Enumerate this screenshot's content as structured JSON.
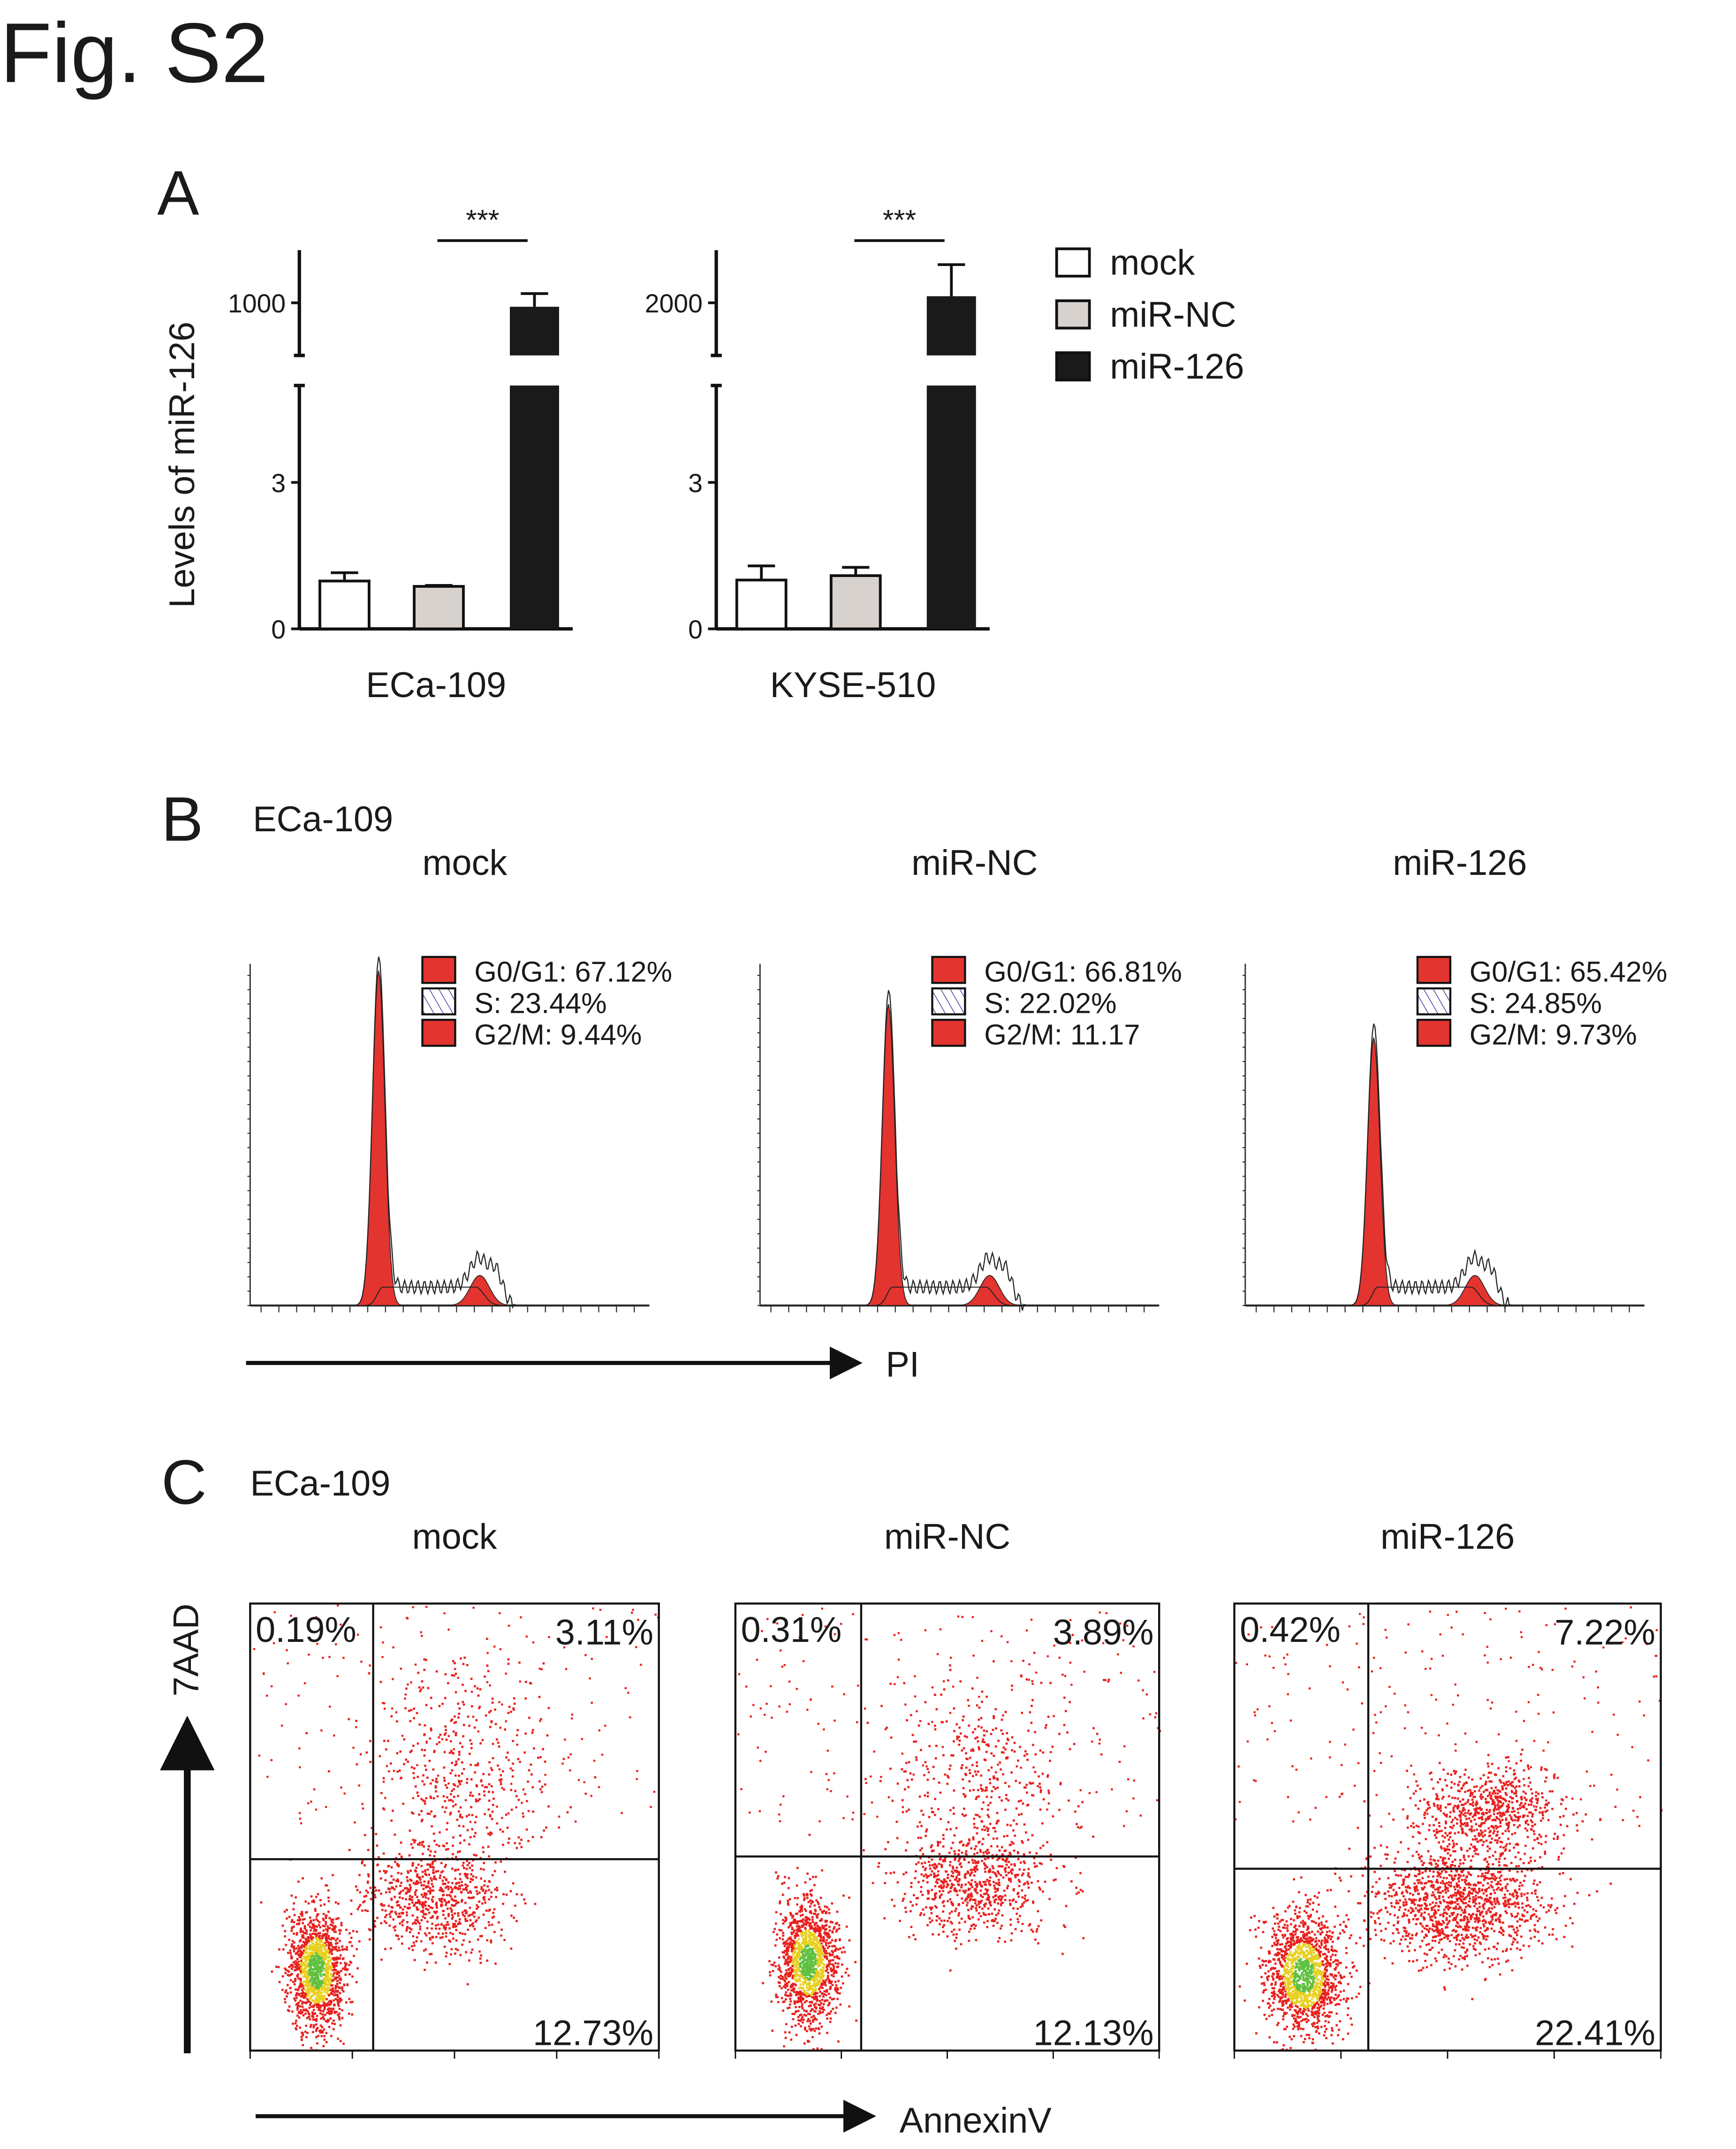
{
  "figure_title": "Fig. S2",
  "panels": {
    "A": "A",
    "B": "B",
    "C": "C"
  },
  "chart_data": [
    {
      "type": "bar",
      "panel": "A",
      "ylabel": "Levels of miR-126",
      "legend": {
        "placement": "right",
        "entries": [
          {
            "name": "mock",
            "color": "#ffffff"
          },
          {
            "name": "miR-NC",
            "color": "#d8d2cf"
          },
          {
            "name": "miR-126",
            "color": "#1a1a1a"
          }
        ]
      },
      "groups": [
        {
          "label": "ECa-109",
          "significance": "***",
          "axis_break": true,
          "lower_ticks": [
            "0",
            "3"
          ],
          "upper_ticks": [
            "1000"
          ],
          "lower_ylim": [
            0,
            5
          ],
          "upper_ylim": [
            800,
            1200
          ],
          "values": [
            0.98,
            0.87,
            985
          ],
          "errors": [
            0.17,
            0.02,
            50
          ]
        },
        {
          "label": "KYSE-510",
          "significance": "***",
          "axis_break": true,
          "lower_ticks": [
            "0",
            "3"
          ],
          "upper_ticks": [
            "2000"
          ],
          "lower_ylim": [
            0,
            5
          ],
          "upper_ylim": [
            1600,
            2400
          ],
          "values": [
            1.0,
            1.09,
            2050
          ],
          "errors": [
            0.29,
            0.17,
            240
          ]
        }
      ]
    },
    {
      "type": "histogram",
      "panel": "B",
      "cell_line": "ECa-109",
      "xlabel": "PI",
      "plots": [
        {
          "title": "mock",
          "legend": [
            "G0/G1: 67.12%",
            "S: 23.44%",
            "G2/M: 9.44%"
          ]
        },
        {
          "title": "miR-NC",
          "legend": [
            "G0/G1: 66.81%",
            "S: 22.02%",
            "G2/M: 11.17"
          ]
        },
        {
          "title": "miR-126",
          "legend": [
            "G0/G1: 65.42%",
            "S: 24.85%",
            "G2/M: 9.73%"
          ]
        }
      ],
      "colors": {
        "g1": "#e3342f",
        "s_hatch": "#3a3aa0",
        "g2m": "#e3342f"
      }
    },
    {
      "type": "scatter",
      "panel": "C",
      "cell_line": "ECa-109",
      "xlabel": "AnnexinV",
      "ylabel": "7AAD",
      "plots": [
        {
          "title": "mock",
          "quadrants": {
            "upper_left": "0.19%",
            "upper_right": "3.11%",
            "lower_right": "12.73%"
          }
        },
        {
          "title": "miR-NC",
          "quadrants": {
            "upper_left": "0.31%",
            "upper_right": "3.89%",
            "lower_right": "12.13%"
          }
        },
        {
          "title": "miR-126",
          "quadrants": {
            "upper_left": "0.42%",
            "upper_right": "7.22%",
            "lower_right": "22.41%"
          }
        }
      ],
      "colors": {
        "points": "#e8201e",
        "dense": "#e8d020",
        "core": "#60c040"
      }
    }
  ]
}
